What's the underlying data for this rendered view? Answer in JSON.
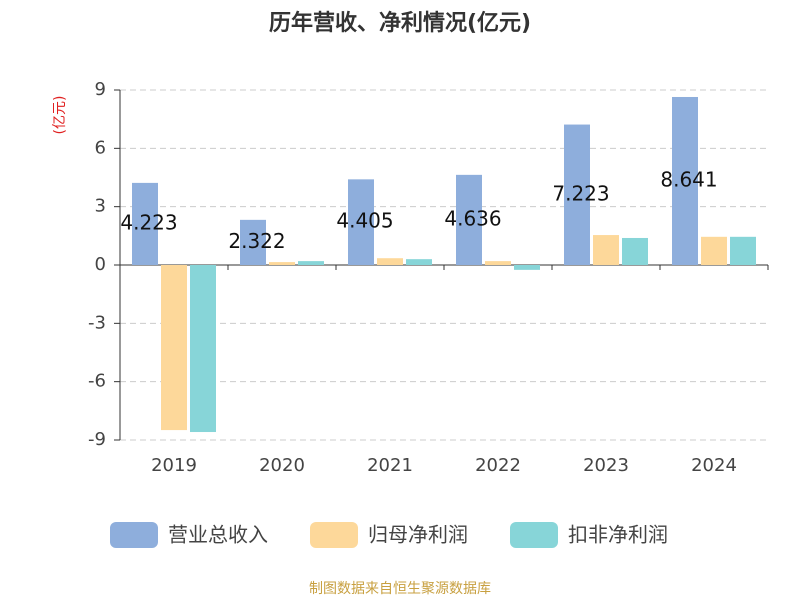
{
  "chart_data": {
    "type": "bar",
    "title": "历年营收、净利情况(亿元)",
    "y_axis_label": "(亿元)",
    "categories": [
      "2019",
      "2020",
      "2021",
      "2022",
      "2023",
      "2024"
    ],
    "series": [
      {
        "name": "营业总收入",
        "color": "#8eaedc",
        "values": [
          4.223,
          2.322,
          4.405,
          4.636,
          7.223,
          8.641
        ]
      },
      {
        "name": "归母净利润",
        "color": "#fdd89a",
        "values": [
          -8.49,
          0.15,
          0.35,
          0.2,
          1.54,
          1.45
        ]
      },
      {
        "name": "扣非净利润",
        "color": "#87d5d8",
        "values": [
          -8.59,
          0.2,
          0.3,
          -0.25,
          1.39,
          1.45
        ]
      }
    ],
    "label_series": 0,
    "ylim": [
      -9,
      9
    ],
    "yticks": [
      -9,
      -6,
      -3,
      0,
      3,
      6,
      9
    ],
    "grid": true,
    "legend_position": "bottom",
    "source": "制图数据来自恒生聚源数据库"
  }
}
